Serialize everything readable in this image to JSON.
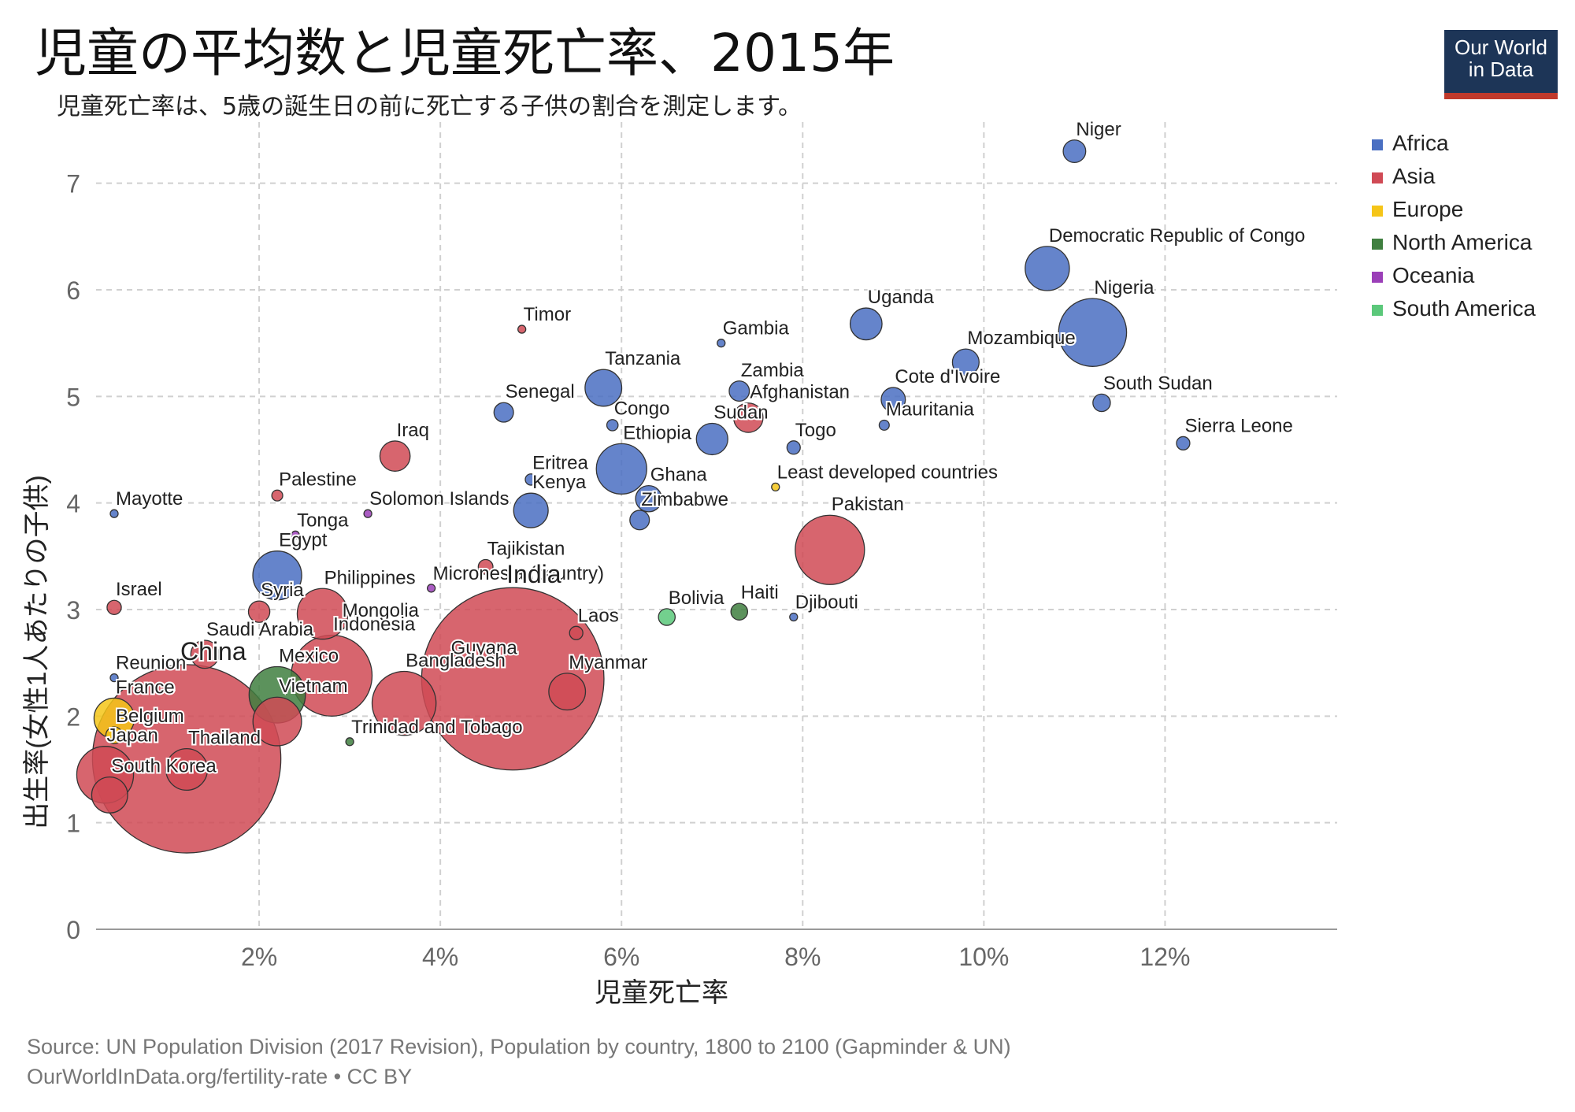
{
  "title": "児童の平均数と児童死亡率、2015年",
  "subtitle": "児童死亡率は、5歳の誕生日の前に死亡する子供の割合を測定します。",
  "logo": {
    "line1": "Our World",
    "line2": "in Data"
  },
  "footer": {
    "source": "Source: UN Population Division (2017 Revision), Population by country, 1800 to 2100 (Gapminder & UN)",
    "url": "OurWorldInData.org/fertility-rate • CC BY"
  },
  "colors": {
    "Africa": "#4a6fc2",
    "Asia": "#d04a55",
    "Europe": "#f5c518",
    "North America": "#3f7f3f",
    "Oceania": "#9b3fb8",
    "South America": "#5bc87a"
  },
  "chart_data": {
    "type": "scatter",
    "title": "児童の平均数と児童死亡率、2015年",
    "xlabel": "児童死亡率",
    "ylabel": "出生率(女性1人あたりの子供)",
    "xlim": [
      0.2,
      13.9
    ],
    "ylim": [
      0,
      7.5
    ],
    "x_ticks": [
      2,
      4,
      6,
      8,
      10,
      12
    ],
    "x_tick_labels": [
      "2%",
      "4%",
      "6%",
      "8%",
      "10%",
      "12%"
    ],
    "y_ticks": [
      0,
      1,
      2,
      3,
      4,
      5,
      6,
      7
    ],
    "y_tick_labels": [
      "0",
      "1",
      "2",
      "3",
      "4",
      "5",
      "6",
      "7"
    ],
    "grid": true,
    "legend": [
      "Africa",
      "Asia",
      "Europe",
      "North America",
      "Oceania",
      "South America"
    ],
    "legend_position": "right",
    "points": [
      {
        "label": "Niger",
        "x": 11.0,
        "y": 7.3,
        "region": "Africa",
        "pop": 20
      },
      {
        "label": "Democratic Republic of Congo",
        "x": 10.7,
        "y": 6.2,
        "region": "Africa",
        "pop": 77
      },
      {
        "label": "Uganda",
        "x": 8.7,
        "y": 5.68,
        "region": "Africa",
        "pop": 40
      },
      {
        "label": "Nigeria",
        "x": 11.2,
        "y": 5.6,
        "region": "Africa",
        "pop": 182
      },
      {
        "label": "Gambia",
        "x": 7.1,
        "y": 5.5,
        "region": "Africa",
        "pop": 2
      },
      {
        "label": "Timor",
        "x": 4.9,
        "y": 5.63,
        "region": "Asia",
        "pop": 1.2
      },
      {
        "label": "Mozambique",
        "x": 9.8,
        "y": 5.32,
        "region": "Africa",
        "pop": 28
      },
      {
        "label": "Tanzania",
        "x": 5.8,
        "y": 5.08,
        "region": "Africa",
        "pop": 53
      },
      {
        "label": "Zambia",
        "x": 7.3,
        "y": 5.05,
        "region": "Africa",
        "pop": 16
      },
      {
        "label": "Cote d'Ivoire",
        "x": 9.0,
        "y": 4.97,
        "region": "Africa",
        "pop": 23
      },
      {
        "label": "South Sudan",
        "x": 11.3,
        "y": 4.94,
        "region": "Africa",
        "pop": 12
      },
      {
        "label": "Afghanistan",
        "x": 7.4,
        "y": 4.8,
        "region": "Asia",
        "pop": 34
      },
      {
        "label": "Senegal",
        "x": 4.7,
        "y": 4.85,
        "region": "Africa",
        "pop": 15
      },
      {
        "label": "Congo",
        "x": 5.9,
        "y": 4.73,
        "region": "Africa",
        "pop": 5
      },
      {
        "label": "Mauritania",
        "x": 8.9,
        "y": 4.73,
        "region": "Africa",
        "pop": 4
      },
      {
        "label": "Sudan",
        "x": 7.0,
        "y": 4.6,
        "region": "Africa",
        "pop": 39
      },
      {
        "label": "Togo",
        "x": 7.9,
        "y": 4.52,
        "region": "Africa",
        "pop": 7
      },
      {
        "label": "Sierra Leone",
        "x": 12.2,
        "y": 4.56,
        "region": "Africa",
        "pop": 7
      },
      {
        "label": "Iraq",
        "x": 3.5,
        "y": 4.44,
        "region": "Asia",
        "pop": 36
      },
      {
        "label": "Ethiopia",
        "x": 6.0,
        "y": 4.32,
        "region": "Africa",
        "pop": 100
      },
      {
        "label": "Eritrea",
        "x": 5.0,
        "y": 4.22,
        "region": "Africa",
        "pop": 5
      },
      {
        "label": "Least developed countries",
        "x": 7.7,
        "y": 4.15,
        "region": "Europe",
        "pop": 2
      },
      {
        "label": "Palestine",
        "x": 2.2,
        "y": 4.07,
        "region": "Asia",
        "pop": 4.7
      },
      {
        "label": "Ghana",
        "x": 6.3,
        "y": 4.04,
        "region": "Africa",
        "pop": 27
      },
      {
        "label": "Kenya",
        "x": 5.0,
        "y": 3.93,
        "region": "Africa",
        "pop": 47
      },
      {
        "label": "Mayotte",
        "x": 0.4,
        "y": 3.9,
        "region": "Africa",
        "pop": 0.24
      },
      {
        "label": "Solomon Islands",
        "x": 3.2,
        "y": 3.9,
        "region": "Oceania",
        "pop": 0.6
      },
      {
        "label": "Zimbabwe",
        "x": 6.2,
        "y": 3.84,
        "region": "Africa",
        "pop": 15
      },
      {
        "label": "Tonga",
        "x": 2.4,
        "y": 3.7,
        "region": "Oceania",
        "pop": 0.1
      },
      {
        "label": "Pakistan",
        "x": 8.3,
        "y": 3.56,
        "region": "Asia",
        "pop": 189
      },
      {
        "label": "Tajikistan",
        "x": 4.5,
        "y": 3.4,
        "region": "Asia",
        "pop": 8.5
      },
      {
        "label": "Egypt",
        "x": 2.2,
        "y": 3.32,
        "region": "Africa",
        "pop": 94
      },
      {
        "label": "Micronesia (country)",
        "x": 3.9,
        "y": 3.2,
        "region": "Oceania",
        "pop": 0.1
      },
      {
        "label": "Israel",
        "x": 0.4,
        "y": 3.02,
        "region": "Asia",
        "pop": 8
      },
      {
        "label": "Syria",
        "x": 2.0,
        "y": 2.98,
        "region": "Asia",
        "pop": 18
      },
      {
        "label": "Bolivia",
        "x": 6.5,
        "y": 2.93,
        "region": "South America",
        "pop": 11
      },
      {
        "label": "Haiti",
        "x": 7.3,
        "y": 2.98,
        "region": "North America",
        "pop": 11
      },
      {
        "label": "Djibouti",
        "x": 7.9,
        "y": 2.93,
        "region": "Africa",
        "pop": 0.9
      },
      {
        "label": "Philippines",
        "x": 2.7,
        "y": 2.96,
        "region": "Asia",
        "pop": 101
      },
      {
        "label": "Mongolia",
        "x": 2.9,
        "y": 2.85,
        "region": "Asia",
        "pop": 3
      },
      {
        "label": "Laos",
        "x": 5.5,
        "y": 2.78,
        "region": "Asia",
        "pop": 7
      },
      {
        "label": "Saudi Arabia",
        "x": 1.4,
        "y": 2.58,
        "region": "Asia",
        "pop": 31
      },
      {
        "label": "India",
        "x": 4.8,
        "y": 2.35,
        "region": "Asia",
        "pop": 1309
      },
      {
        "label": "Guyana",
        "x": 4.1,
        "y": 2.5,
        "region": "South America",
        "pop": 0.8
      },
      {
        "label": "Indonesia",
        "x": 2.8,
        "y": 2.38,
        "region": "Asia",
        "pop": 258
      },
      {
        "label": "Reunion",
        "x": 0.4,
        "y": 2.36,
        "region": "Africa",
        "pop": 0.9
      },
      {
        "label": "Myanmar",
        "x": 5.4,
        "y": 2.23,
        "region": "Asia",
        "pop": 53
      },
      {
        "label": "Mexico",
        "x": 2.2,
        "y": 2.2,
        "region": "North America",
        "pop": 125
      },
      {
        "label": "Bangladesh",
        "x": 3.6,
        "y": 2.12,
        "region": "Asia",
        "pop": 161
      },
      {
        "label": "France",
        "x": 0.4,
        "y": 1.98,
        "region": "Europe",
        "pop": 64
      },
      {
        "label": "Vietnam",
        "x": 2.2,
        "y": 1.95,
        "region": "Asia",
        "pop": 93
      },
      {
        "label": "Belgium",
        "x": 0.4,
        "y": 1.82,
        "region": "Europe",
        "pop": 11
      },
      {
        "label": "China",
        "x": 1.2,
        "y": 1.6,
        "region": "Asia",
        "pop": 1397
      },
      {
        "label": "Thailand",
        "x": 1.2,
        "y": 1.5,
        "region": "Asia",
        "pop": 68
      },
      {
        "label": "Trinidad and Tobago",
        "x": 3.0,
        "y": 1.76,
        "region": "North America",
        "pop": 1.4
      },
      {
        "label": "Japan",
        "x": 0.3,
        "y": 1.45,
        "region": "Asia",
        "pop": 127
      },
      {
        "label": "South Korea",
        "x": 0.35,
        "y": 1.26,
        "region": "Asia",
        "pop": 51
      }
    ]
  }
}
